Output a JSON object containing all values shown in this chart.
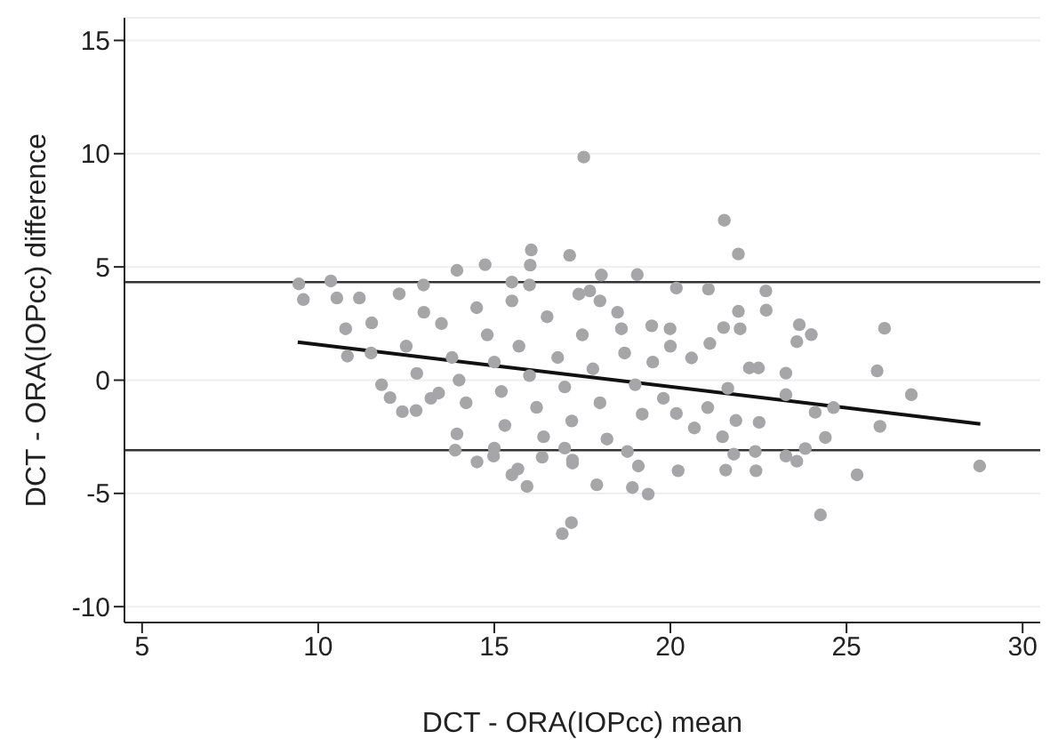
{
  "chart_data": {
    "type": "scatter",
    "xlabel": "DCT - ORA(IOPcc) mean",
    "ylabel": "DCT - ORA(IOPcc) difference",
    "xlim": [
      4.5,
      30.5
    ],
    "ylim": [
      -10.7,
      16
    ],
    "xticks": [
      5,
      10,
      15,
      20,
      25,
      30
    ],
    "yticks": [
      -10,
      -5,
      0,
      5,
      10,
      15
    ],
    "grid": "y",
    "legend": false,
    "ref_lines": [
      {
        "axis": "y",
        "value": 4.33,
        "color": "#333333"
      },
      {
        "axis": "y",
        "value": -3.09,
        "color": "#333333"
      }
    ],
    "series": [
      {
        "color": "#a6a6a8",
        "marker": "circle",
        "x": [
          9.45,
          9.58,
          10.36,
          10.53,
          11.17,
          10.78,
          10.83,
          11.52,
          12.3,
          12.04,
          12.39,
          12.78,
          12.99,
          13.89,
          13.94,
          14.51,
          14.74,
          13.94,
          13.42,
          15.5,
          15.5,
          17.54,
          21.53,
          21.93,
          16.05,
          16.02,
          17.14,
          18.04,
          19.06,
          17.71,
          20.17,
          21.08,
          22.71,
          22.72,
          21.93,
          21.98,
          21.51,
          23.66,
          24.0,
          23.59,
          26.08,
          25.87,
          26.84,
          23.28,
          23.28,
          24.11,
          24.63,
          25.95,
          24.4,
          23.83,
          23.59,
          23.28,
          22.43,
          21.57,
          21.8,
          22.41,
          21.48,
          22.52,
          21.86,
          25.3,
          28.78,
          24.26,
          17.19,
          16.93,
          19.37,
          18.92,
          20.22,
          17.91,
          15.93,
          15.67,
          17.22,
          19.09,
          22.24,
          22.5,
          21.63,
          21.06,
          20.68,
          20.17,
          19.47,
          19.99,
          21.12,
          20.6,
          18.61,
          18.78,
          17.22,
          16.36,
          14.98,
          13.5,
          13.8,
          14.0,
          14.2,
          14.5,
          14.8,
          15.0,
          15.2,
          15.3,
          15.5,
          15.7,
          16.0,
          16.2,
          16.4,
          16.5,
          16.8,
          17.0,
          17.2,
          17.4,
          17.5,
          17.8,
          18.0,
          18.2,
          18.5,
          18.7,
          19.0,
          19.2,
          19.5,
          19.8,
          20.0,
          12.5,
          12.8,
          13.2,
          13.0,
          11.5,
          11.8,
          16.0,
          17.0,
          18.0,
          15.0
        ],
        "values": [
          4.25,
          3.56,
          4.38,
          3.63,
          3.63,
          2.27,
          1.06,
          2.53,
          3.81,
          -0.77,
          -1.39,
          -1.34,
          4.2,
          -3.09,
          -2.37,
          -3.61,
          5.1,
          4.85,
          -0.57,
          -4.18,
          4.33,
          9.85,
          7.06,
          5.57,
          5.75,
          5.08,
          5.51,
          4.64,
          4.66,
          3.94,
          4.07,
          4.02,
          3.94,
          3.09,
          3.04,
          2.27,
          2.32,
          2.45,
          2.01,
          1.7,
          2.29,
          0.41,
          -0.64,
          0.31,
          -0.64,
          -1.42,
          -1.21,
          -2.04,
          -2.53,
          -3.02,
          -3.58,
          -3.35,
          -4.0,
          -3.97,
          -3.27,
          -3.15,
          -2.5,
          -1.86,
          -1.78,
          -4.18,
          -3.79,
          -5.95,
          -6.29,
          -6.78,
          -5.03,
          -4.74,
          -4.0,
          -4.62,
          -4.69,
          -3.92,
          -3.66,
          -3.79,
          0.54,
          0.54,
          -0.36,
          -1.21,
          -2.11,
          -1.47,
          2.4,
          2.27,
          1.62,
          0.98,
          2.27,
          -3.15,
          -3.53,
          -3.4,
          -3.35,
          2.5,
          1.0,
          0.0,
          -1.0,
          3.2,
          2.0,
          0.8,
          -0.5,
          -2.0,
          3.5,
          1.5,
          0.2,
          -1.2,
          -2.5,
          2.8,
          1.0,
          -0.3,
          -1.8,
          3.8,
          2.0,
          0.5,
          -1.0,
          -2.6,
          3.0,
          1.2,
          -0.2,
          -1.5,
          0.8,
          -0.8,
          1.5,
          1.5,
          0.3,
          -0.8,
          3.0,
          1.2,
          -0.2,
          4.2,
          -3.0,
          3.5,
          -3.0
        ]
      },
      {
        "type": "line",
        "color": "#111111",
        "marker": "none",
        "line_style": "solid",
        "x": [
          9.42,
          28.8
        ],
        "values": [
          1.68,
          -1.93
        ]
      }
    ]
  }
}
